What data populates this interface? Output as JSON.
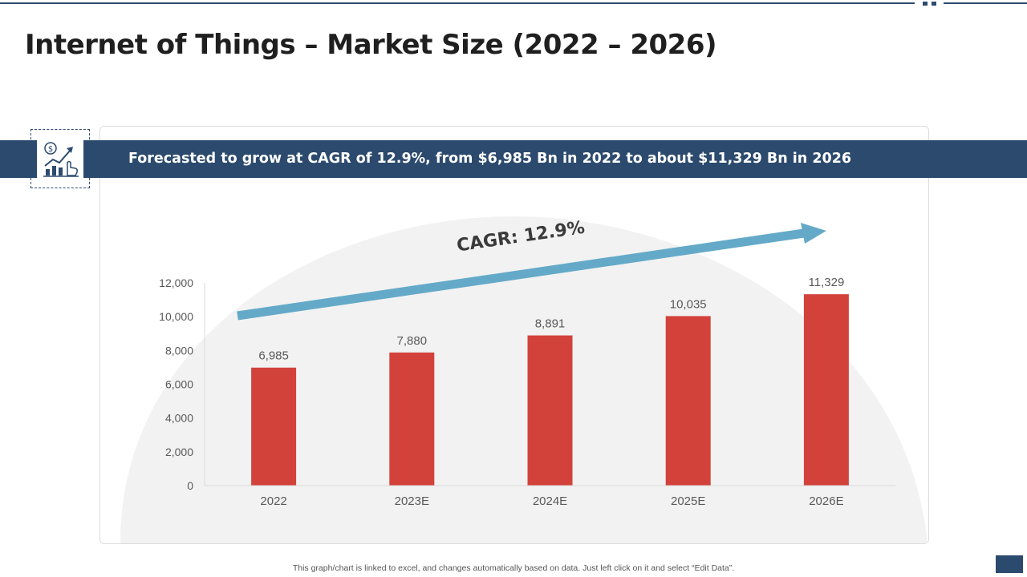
{
  "title": "Internet of Things – Market Size (2022 – 2026)",
  "banner": {
    "text": "Forecasted  to grow at CAGR of 12.9%, from $6,985 Bn in 2022 to about $11,329 Bn in 2026"
  },
  "icon": {
    "name": "growth-chart-icon"
  },
  "footnote": "This graph/chart is linked to excel,  and changes automatically based on data. Just left click on it and select “Edit Data”.",
  "colors": {
    "accent": "#2c4a6e",
    "bar": "#d2423b",
    "arrow": "#64aac8",
    "dome": "#f2f2f2"
  },
  "chart_data": {
    "type": "bar",
    "categories": [
      "2022",
      "2023E",
      "2024E",
      "2025E",
      "2026E"
    ],
    "values": [
      6985,
      7880,
      8891,
      10035,
      11329
    ],
    "value_labels": [
      "6,985",
      "7,880",
      "8,891",
      "10,035",
      "11,329"
    ],
    "ylim": [
      0,
      12000
    ],
    "yticks": [
      0,
      2000,
      4000,
      6000,
      8000,
      10000,
      12000
    ],
    "ytick_labels": [
      "0",
      "2,000",
      "4,000",
      "6,000",
      "8,000",
      "10,000",
      "12,000"
    ],
    "annotation": "CAGR: 12.9%",
    "title": "",
    "xlabel": "",
    "ylabel": "",
    "grid": false,
    "legend": "none"
  }
}
